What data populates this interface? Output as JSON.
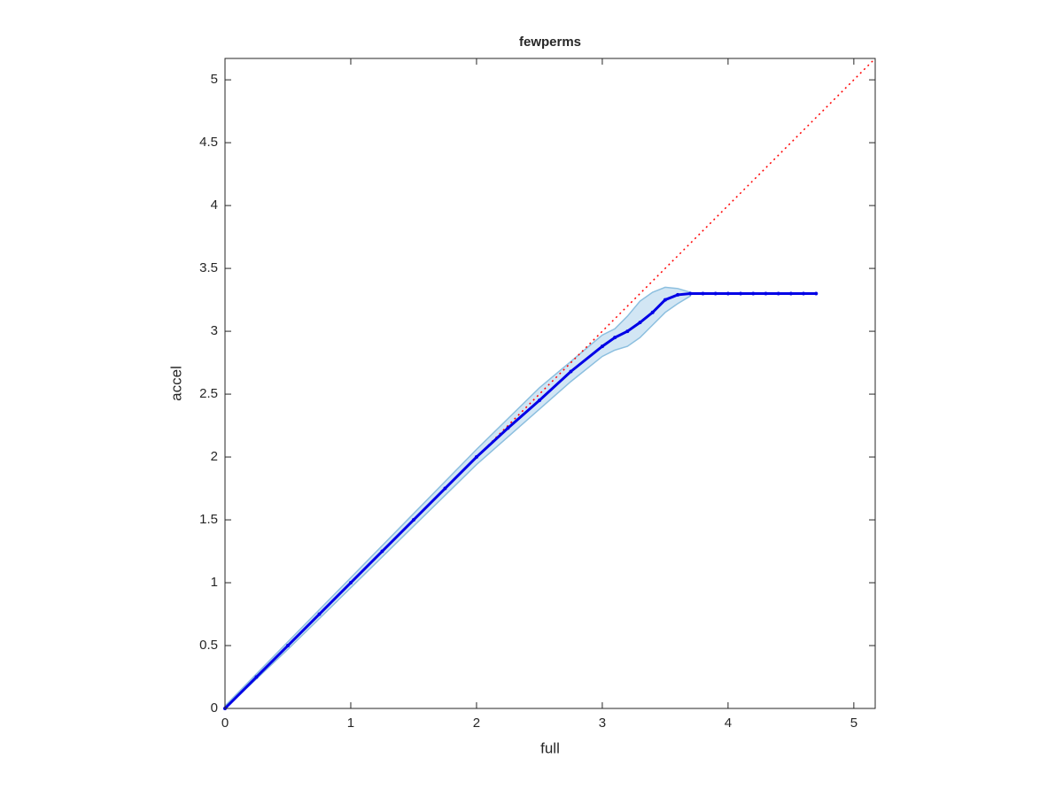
{
  "chart_data": {
    "type": "line",
    "title": "fewperms",
    "x_label": "full",
    "y_label": "accel",
    "xlim": [
      0,
      5.17
    ],
    "ylim": [
      0,
      5.17
    ],
    "xticks": [
      0,
      1,
      2,
      3,
      4,
      5
    ],
    "yticks": [
      0,
      0.5,
      1,
      1.5,
      2,
      2.5,
      3,
      3.5,
      4,
      4.5,
      5
    ],
    "reference": {
      "color": "#ff0000",
      "x": [
        0,
        5.17
      ],
      "y": [
        0,
        5.17
      ]
    },
    "band": {
      "color": "#d2e6f4",
      "edge_color": "#8cbfdf",
      "x": [
        0,
        0.5,
        1,
        1.5,
        2,
        2.5,
        2.75,
        3,
        3.1,
        3.2,
        3.3,
        3.4,
        3.5,
        3.6,
        3.7
      ],
      "lower": [
        0,
        0.47,
        0.96,
        1.45,
        1.94,
        2.38,
        2.6,
        2.8,
        2.85,
        2.88,
        2.95,
        3.05,
        3.15,
        3.22,
        3.28
      ],
      "upper": [
        0.02,
        0.53,
        1.04,
        1.55,
        2.06,
        2.55,
        2.76,
        2.97,
        3.02,
        3.12,
        3.24,
        3.31,
        3.35,
        3.34,
        3.31
      ]
    },
    "series": [
      {
        "color": "#0000e6",
        "x": [
          0,
          0.25,
          0.5,
          0.75,
          1,
          1.25,
          1.5,
          1.75,
          2,
          2.25,
          2.5,
          2.75,
          3,
          3.1,
          3.2,
          3.3,
          3.4,
          3.5,
          3.6,
          3.7,
          3.8,
          3.9,
          4,
          4.1,
          4.2,
          4.3,
          4.4,
          4.5,
          4.6,
          4.7
        ],
        "values": [
          0,
          0.25,
          0.5,
          0.75,
          1,
          1.25,
          1.5,
          1.75,
          2,
          2.23,
          2.45,
          2.68,
          2.88,
          2.95,
          3.0,
          3.07,
          3.15,
          3.25,
          3.29,
          3.3,
          3.3,
          3.3,
          3.3,
          3.3,
          3.3,
          3.3,
          3.3,
          3.3,
          3.3,
          3.3
        ]
      }
    ]
  }
}
